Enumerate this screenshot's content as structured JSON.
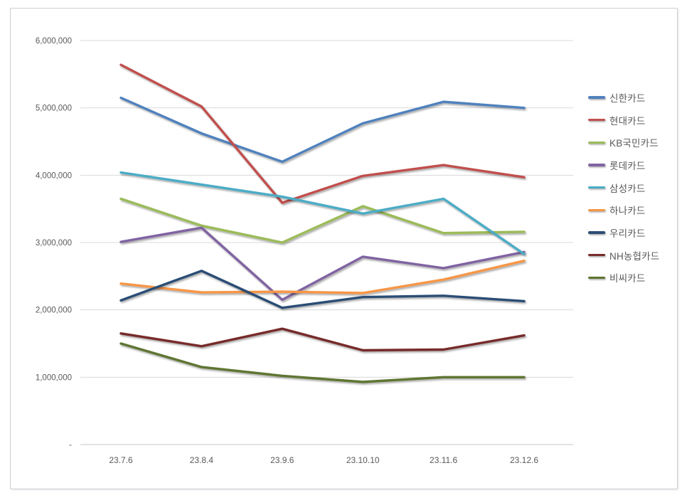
{
  "chart_data": {
    "type": "line",
    "title": "",
    "xlabel": "",
    "ylabel": "",
    "grid": true,
    "legend_position": "right",
    "categories": [
      "23.7.6",
      "23.8.4",
      "23.9.6",
      "23.10.10",
      "23.11.6",
      "23.12.6"
    ],
    "series": [
      {
        "name": "신한카드",
        "color": "#4F81BD",
        "values": [
          5150000,
          4620000,
          4200000,
          4770000,
          5090000,
          5000000
        ]
      },
      {
        "name": "현대카드",
        "color": "#C0504D",
        "values": [
          5640000,
          5020000,
          3590000,
          3990000,
          4150000,
          3970000
        ]
      },
      {
        "name": "KB국민카드",
        "color": "#9BBB59",
        "values": [
          3650000,
          3250000,
          3000000,
          3540000,
          3140000,
          3160000
        ]
      },
      {
        "name": "롯데카드",
        "color": "#8064A2",
        "values": [
          3010000,
          3220000,
          2150000,
          2790000,
          2620000,
          2860000
        ]
      },
      {
        "name": "삼성카드",
        "color": "#4BACC6",
        "values": [
          4040000,
          3860000,
          3680000,
          3430000,
          3650000,
          2830000
        ]
      },
      {
        "name": "하나카드",
        "color": "#F79646",
        "values": [
          2390000,
          2260000,
          2270000,
          2250000,
          2450000,
          2730000
        ]
      },
      {
        "name": "우리카드",
        "color": "#2C4D75",
        "values": [
          2140000,
          2580000,
          2030000,
          2190000,
          2210000,
          2130000
        ]
      },
      {
        "name": "NH농협카드",
        "color": "#772C2A",
        "values": [
          1650000,
          1460000,
          1720000,
          1400000,
          1410000,
          1620000
        ]
      },
      {
        "name": "비씨카드",
        "color": "#5F7530",
        "values": [
          1500000,
          1150000,
          1020000,
          930000,
          1000000,
          1000000
        ]
      }
    ],
    "y_axis": {
      "min": 0,
      "max": 6000000,
      "step": 1000000,
      "tick_labels": [
        "-",
        "1,000,000",
        "2,000,000",
        "3,000,000",
        "4,000,000",
        "5,000,000",
        "6,000,000"
      ]
    },
    "theme": {
      "gridline_color": "#D9D9D9",
      "axis_line_color": "#C6C6C6",
      "axis_text_color": "#595959",
      "legend_text_color": "#595959",
      "panel_border_color": "#C9CDD2",
      "background_color": "#FFFFFF"
    }
  }
}
